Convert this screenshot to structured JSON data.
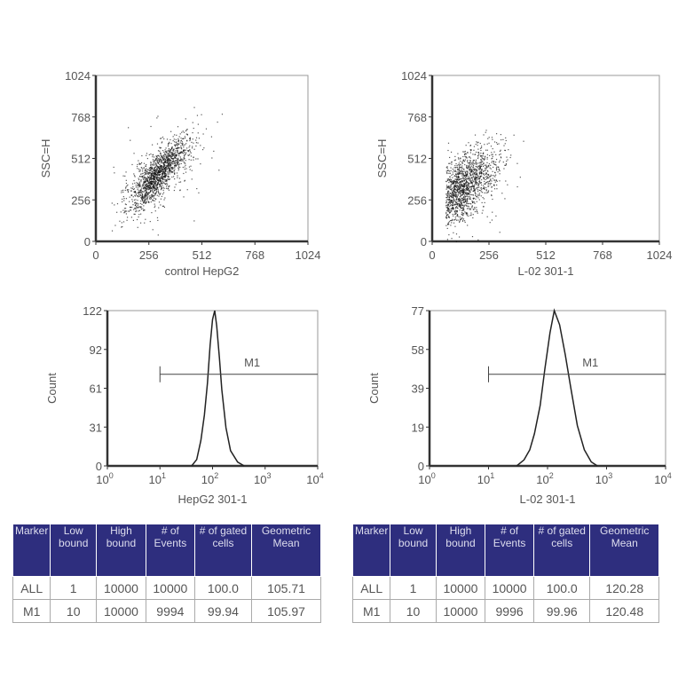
{
  "chart_data": [
    {
      "type": "scatter",
      "xlabel": "control HepG2",
      "ylabel": "SSC=H",
      "xlim": [
        0,
        1024
      ],
      "ylim": [
        0,
        1024
      ],
      "xticks": [
        "0",
        "256",
        "512",
        "768",
        "1024"
      ],
      "yticks": [
        "0",
        "256",
        "512",
        "768",
        "1024"
      ],
      "grid": false
    },
    {
      "type": "scatter",
      "xlabel": "L-02  301-1",
      "ylabel": "SSC=H",
      "xlim": [
        0,
        1024
      ],
      "ylim": [
        0,
        1024
      ],
      "xticks": [
        "0",
        "256",
        "512",
        "768",
        "1024"
      ],
      "yticks": [
        "0",
        "256",
        "512",
        "768",
        "1024"
      ],
      "grid": false
    },
    {
      "type": "line",
      "xscale": "log",
      "xlabel": "HepG2  301-1",
      "ylabel": "Count",
      "xlim": [
        1,
        10000
      ],
      "ylim": [
        0,
        122
      ],
      "yticks": [
        "0",
        "31",
        "61",
        "92",
        "122"
      ],
      "xticks": [
        "10^0",
        "10^1",
        "10^2",
        "10^3",
        "10^4"
      ],
      "x": [
        40,
        50,
        60,
        70,
        80,
        90,
        100,
        110,
        120,
        135,
        150,
        180,
        220,
        300,
        400
      ],
      "y": [
        0,
        5,
        20,
        40,
        65,
        95,
        115,
        122,
        110,
        85,
        60,
        30,
        12,
        3,
        0
      ],
      "marker": {
        "label": "M1",
        "range": [
          10,
          10000
        ]
      }
    },
    {
      "type": "line",
      "xscale": "log",
      "xlabel": "L-02  301-1",
      "ylabel": "Count",
      "xlim": [
        1,
        10000
      ],
      "ylim": [
        0,
        77
      ],
      "yticks": [
        "0",
        "19",
        "39",
        "58",
        "77"
      ],
      "xticks": [
        "10^0",
        "10^1",
        "10^2",
        "10^3",
        "10^4"
      ],
      "x": [
        30,
        40,
        50,
        60,
        75,
        90,
        110,
        130,
        160,
        200,
        250,
        320,
        420,
        550,
        700
      ],
      "y": [
        0,
        3,
        8,
        16,
        30,
        48,
        66,
        77,
        70,
        55,
        38,
        20,
        8,
        2,
        0
      ],
      "marker": {
        "label": "M1",
        "range": [
          10,
          10000
        ]
      }
    }
  ],
  "tables": [
    {
      "headers": [
        "Marker",
        "Low bound",
        "High bound",
        "# of Events",
        "# of gated cells",
        "Geometric Mean"
      ],
      "rows": [
        [
          "ALL",
          "1",
          "10000",
          "10000",
          "100.0",
          "105.71"
        ],
        [
          "M1",
          "10",
          "10000",
          "9994",
          "99.94",
          "105.97"
        ]
      ]
    },
    {
      "headers": [
        "Marker",
        "Low bound",
        "High bound",
        "# of Events",
        "# of gated cells",
        "Geometric Mean"
      ],
      "rows": [
        [
          "ALL",
          "1",
          "10000",
          "10000",
          "100.0",
          "120.28"
        ],
        [
          "M1",
          "10",
          "10000",
          "9996",
          "99.96",
          "120.48"
        ]
      ]
    }
  ],
  "colors": {
    "header": "#2e2e7e",
    "axis": "#333333"
  }
}
